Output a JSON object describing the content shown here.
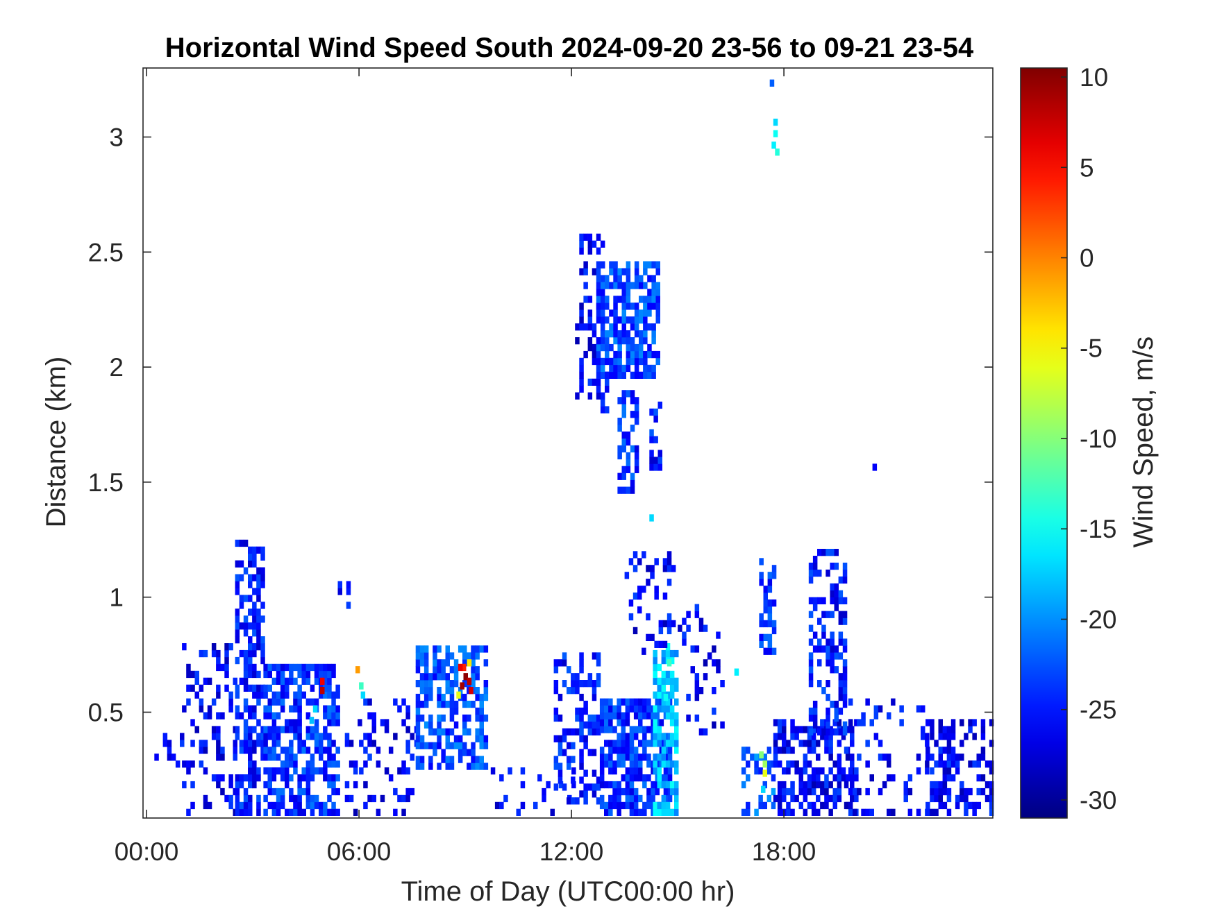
{
  "chart_data": {
    "type": "heatmap",
    "title": "Horizontal Wind Speed South 2024-09-20 23-56 to 09-21 23-54",
    "xlabel": "Time of Day (UTC00:00 hr)",
    "ylabel": "Distance (km)",
    "colorbar_label": "Wind Speed, m/s",
    "colormap": "jet",
    "x_ticks": [
      {
        "value": 0,
        "label": "00:00"
      },
      {
        "value": 6,
        "label": "06:00"
      },
      {
        "value": 12,
        "label": "12:00"
      },
      {
        "value": 18,
        "label": "18:00"
      }
    ],
    "xlim": [
      -0.1,
      23.9
    ],
    "y_ticks": [
      {
        "value": 0.5,
        "label": "0.5"
      },
      {
        "value": 1,
        "label": "1"
      },
      {
        "value": 1.5,
        "label": "1.5"
      },
      {
        "value": 2,
        "label": "2"
      },
      {
        "value": 2.5,
        "label": "2.5"
      },
      {
        "value": 3,
        "label": "3"
      }
    ],
    "ylim": [
      0.04,
      3.3
    ],
    "colorbar_ticks": [
      {
        "value": 10,
        "label": "10"
      },
      {
        "value": 5,
        "label": "5"
      },
      {
        "value": 0,
        "label": "0"
      },
      {
        "value": -5,
        "label": "-5"
      },
      {
        "value": -10,
        "label": "-10"
      },
      {
        "value": -15,
        "label": "-15"
      },
      {
        "value": -20,
        "label": "-20"
      },
      {
        "value": -25,
        "label": "-25"
      },
      {
        "value": -30,
        "label": "-30"
      }
    ],
    "clim": [
      -31,
      10.5
    ],
    "grid": false,
    "regions": [
      {
        "x": [
          0.1,
          1.0
        ],
        "y": [
          0.05,
          0.4
        ],
        "density": 0.15,
        "v": -26
      },
      {
        "x": [
          1.0,
          2.5
        ],
        "y": [
          0.05,
          0.78
        ],
        "density": 0.3,
        "v": -26
      },
      {
        "x": [
          2.5,
          3.3
        ],
        "y": [
          0.05,
          1.25
        ],
        "density": 0.55,
        "v": -25
      },
      {
        "x": [
          3.3,
          5.4
        ],
        "y": [
          0.05,
          0.7
        ],
        "density": 0.65,
        "v": -24
      },
      {
        "x": [
          5.4,
          5.7
        ],
        "y": [
          0.95,
          1.1
        ],
        "density": 0.3,
        "v": -26
      },
      {
        "x": [
          5.6,
          6.0
        ],
        "y": [
          0.05,
          0.45
        ],
        "density": 0.15,
        "v": -26
      },
      {
        "x": [
          6.0,
          7.6
        ],
        "y": [
          0.05,
          0.55
        ],
        "density": 0.25,
        "v": -26
      },
      {
        "x": [
          7.6,
          9.6
        ],
        "y": [
          0.25,
          0.78
        ],
        "density": 0.6,
        "v": -23
      },
      {
        "x": [
          9.6,
          12.0
        ],
        "y": [
          0.05,
          0.25
        ],
        "density": 0.15,
        "v": -26
      },
      {
        "x": [
          11.5,
          12.8
        ],
        "y": [
          0.1,
          0.75
        ],
        "density": 0.45,
        "v": -25
      },
      {
        "x": [
          12.8,
          14.8
        ],
        "y": [
          0.05,
          0.55
        ],
        "density": 0.75,
        "v": -24
      },
      {
        "x": [
          14.3,
          15.0
        ],
        "y": [
          0.05,
          0.8
        ],
        "density": 0.6,
        "v": -18
      },
      {
        "x": [
          15.0,
          16.2
        ],
        "y": [
          0.4,
          0.95
        ],
        "density": 0.15,
        "v": -26
      },
      {
        "x": [
          12.1,
          13.0
        ],
        "y": [
          1.8,
          2.57
        ],
        "density": 0.3,
        "v": -26
      },
      {
        "x": [
          12.7,
          14.4
        ],
        "y": [
          1.95,
          2.45
        ],
        "density": 0.7,
        "v": -23
      },
      {
        "x": [
          13.3,
          13.8
        ],
        "y": [
          1.45,
          1.9
        ],
        "density": 0.55,
        "v": -24
      },
      {
        "x": [
          14.2,
          14.5
        ],
        "y": [
          1.55,
          1.85
        ],
        "density": 0.4,
        "v": -25
      },
      {
        "x": [
          13.5,
          14.9
        ],
        "y": [
          0.75,
          1.2
        ],
        "density": 0.25,
        "v": -26
      },
      {
        "x": [
          16.8,
          17.7
        ],
        "y": [
          0.05,
          0.35
        ],
        "density": 0.4,
        "v": -22
      },
      {
        "x": [
          17.3,
          17.7
        ],
        "y": [
          0.75,
          1.2
        ],
        "density": 0.6,
        "v": -24
      },
      {
        "x": [
          17.7,
          20.0
        ],
        "y": [
          0.05,
          0.45
        ],
        "density": 0.5,
        "v": -26
      },
      {
        "x": [
          18.7,
          19.7
        ],
        "y": [
          0.4,
          1.2
        ],
        "density": 0.45,
        "v": -25
      },
      {
        "x": [
          19.7,
          22.0
        ],
        "y": [
          0.05,
          0.55
        ],
        "density": 0.18,
        "v": -26
      },
      {
        "x": [
          22.0,
          23.9
        ],
        "y": [
          0.05,
          0.45
        ],
        "density": 0.4,
        "v": -26
      }
    ],
    "cells": [
      {
        "x": 4.9,
        "y": 0.58,
        "v": 8
      },
      {
        "x": 4.9,
        "y": 0.62,
        "v": 6
      },
      {
        "x": 8.85,
        "y": 0.6,
        "v": 9
      },
      {
        "x": 8.95,
        "y": 0.64,
        "v": 10
      },
      {
        "x": 9.05,
        "y": 0.62,
        "v": 8
      },
      {
        "x": 8.9,
        "y": 0.68,
        "v": 4
      },
      {
        "x": 9.05,
        "y": 0.7,
        "v": -4
      },
      {
        "x": 8.75,
        "y": 0.56,
        "v": -6
      },
      {
        "x": 8.8,
        "y": 0.68,
        "v": 6
      },
      {
        "x": 9.1,
        "y": 0.58,
        "v": 7
      },
      {
        "x": 6.0,
        "y": 0.6,
        "v": -13
      },
      {
        "x": 5.9,
        "y": 0.67,
        "v": -1
      },
      {
        "x": 6.05,
        "y": 0.56,
        "v": -17
      },
      {
        "x": 17.3,
        "y": 0.3,
        "v": -10
      },
      {
        "x": 17.4,
        "y": 0.22,
        "v": -6
      },
      {
        "x": 17.35,
        "y": 0.15,
        "v": -17
      },
      {
        "x": 17.4,
        "y": 0.26,
        "v": -9
      },
      {
        "x": 16.6,
        "y": 0.66,
        "v": -16
      },
      {
        "x": 17.6,
        "y": 3.22,
        "v": -22
      },
      {
        "x": 17.7,
        "y": 3.05,
        "v": -17
      },
      {
        "x": 17.7,
        "y": 3.0,
        "v": -15
      },
      {
        "x": 17.65,
        "y": 2.95,
        "v": -16
      },
      {
        "x": 17.75,
        "y": 2.92,
        "v": -14
      },
      {
        "x": 14.2,
        "y": 1.33,
        "v": -17
      },
      {
        "x": 20.5,
        "y": 1.55,
        "v": -26
      },
      {
        "x": 14.6,
        "y": 0.55,
        "v": -15
      },
      {
        "x": 14.7,
        "y": 0.7,
        "v": -13
      },
      {
        "x": 4.7,
        "y": 0.5,
        "v": -17
      },
      {
        "x": 4.6,
        "y": 0.45,
        "v": -18
      }
    ]
  }
}
